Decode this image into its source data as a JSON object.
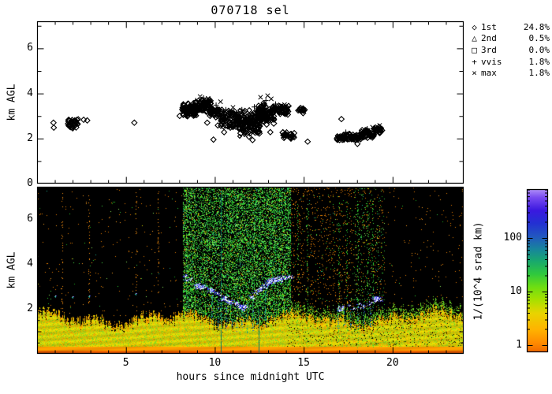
{
  "labels": {
    "title": "070718 sel",
    "y_axis": "km AGL",
    "x_axis": "hours since midnight UTC",
    "colorbar": "1/(10^4 srad km)"
  },
  "legend": {
    "items": [
      {
        "symbol": "◇",
        "name": "1st",
        "pct": "24.8%"
      },
      {
        "symbol": "△",
        "name": "2nd",
        "pct": "0.5%"
      },
      {
        "symbol": "□",
        "name": "3rd",
        "pct": "0.0%"
      },
      {
        "symbol": "+",
        "name": "vvis",
        "pct": "1.8%"
      },
      {
        "symbol": "×",
        "name": "max",
        "pct": "1.8%"
      }
    ]
  },
  "axes": {
    "x": {
      "min": 0,
      "max": 24,
      "major": [
        5,
        10,
        15,
        20
      ],
      "minor_step": 1
    },
    "y_top": {
      "min": 0,
      "max": 7.2,
      "labeled": [
        0,
        2,
        4,
        6
      ]
    },
    "y_bottom": {
      "min": 0,
      "max": 7.45,
      "labeled": [
        2,
        4,
        6
      ]
    },
    "colorbar": {
      "ticks": [
        1,
        10,
        100
      ],
      "scale": "log",
      "units": "1/(10^4 srad km)"
    }
  },
  "chart_data": [
    {
      "type": "scatter",
      "title": "070718 sel",
      "xlabel": "hours since midnight UTC",
      "ylabel": "km AGL",
      "xlim": [
        0,
        24
      ],
      "ylim": [
        0,
        7.2
      ],
      "legend_position": "right-outside",
      "series_note": "cloud-base heights, km AGL vs hour",
      "diamond_singles": [
        [
          0.9,
          2.72
        ],
        [
          0.92,
          2.5
        ],
        [
          2.6,
          2.85
        ],
        [
          2.8,
          2.82
        ],
        [
          5.45,
          2.72
        ],
        [
          8.0,
          3.02
        ],
        [
          9.55,
          2.72
        ],
        [
          9.9,
          1.97
        ],
        [
          10.15,
          2.6
        ],
        [
          10.5,
          2.3
        ],
        [
          10.85,
          2.5
        ],
        [
          11.9,
          2.1
        ],
        [
          12.1,
          1.95
        ],
        [
          13.1,
          2.3
        ],
        [
          14.25,
          2.02
        ],
        [
          15.2,
          1.88
        ],
        [
          17.1,
          2.88
        ],
        [
          18.0,
          1.78
        ]
      ],
      "diamond_clusters": [
        {
          "h0": 1.7,
          "h1": 2.3,
          "k0": 2.42,
          "k1": 2.92,
          "n": 40
        },
        {
          "h0": 8.15,
          "h1": 9.0,
          "k0": 2.95,
          "k1": 3.6,
          "n": 90
        },
        {
          "h0": 8.9,
          "h1": 9.8,
          "k0": 3.1,
          "k1": 3.85,
          "n": 80
        },
        {
          "h0": 9.7,
          "h1": 10.4,
          "k0": 2.9,
          "k1": 3.45,
          "n": 45
        },
        {
          "h0": 10.3,
          "h1": 11.35,
          "k0": 2.45,
          "k1": 3.35,
          "n": 80
        },
        {
          "h0": 11.25,
          "h1": 12.5,
          "k0": 2.1,
          "k1": 3.3,
          "n": 150
        },
        {
          "h0": 12.4,
          "h1": 13.35,
          "k0": 2.55,
          "k1": 3.7,
          "n": 130
        },
        {
          "h0": 13.45,
          "h1": 14.15,
          "k0": 3.05,
          "k1": 3.55,
          "n": 45
        },
        {
          "h0": 13.8,
          "h1": 14.45,
          "k0": 1.98,
          "k1": 2.32,
          "n": 30
        },
        {
          "h0": 14.65,
          "h1": 15.1,
          "k0": 3.12,
          "k1": 3.42,
          "n": 14
        },
        {
          "h0": 16.8,
          "h1": 17.45,
          "k0": 1.92,
          "k1": 2.22,
          "n": 35
        },
        {
          "h0": 17.4,
          "h1": 18.25,
          "k0": 1.88,
          "k1": 2.28,
          "n": 55
        },
        {
          "h0": 18.2,
          "h1": 18.95,
          "k0": 2.02,
          "k1": 2.42,
          "n": 55
        },
        {
          "h0": 18.9,
          "h1": 19.4,
          "k0": 2.22,
          "k1": 2.58,
          "n": 30
        }
      ],
      "plus_points": [
        [
          8.9,
          3.7
        ],
        [
          9.35,
          3.82
        ],
        [
          10.05,
          3.5
        ],
        [
          10.6,
          3.3
        ],
        [
          11.5,
          3.3
        ],
        [
          12.2,
          3.42
        ],
        [
          12.85,
          3.7
        ],
        [
          13.4,
          3.55
        ],
        [
          17.35,
          2.3
        ],
        [
          18.55,
          2.45
        ]
      ],
      "cross_points": [
        [
          9.15,
          3.88
        ],
        [
          9.6,
          3.8
        ],
        [
          10.3,
          3.65
        ],
        [
          11.0,
          3.4
        ],
        [
          12.55,
          3.85
        ],
        [
          12.95,
          3.92
        ],
        [
          13.15,
          3.78
        ],
        [
          13.9,
          3.52
        ],
        [
          14.1,
          3.38
        ],
        [
          18.85,
          2.52
        ],
        [
          19.25,
          2.6
        ]
      ]
    },
    {
      "type": "heatmap",
      "xlabel": "hours since midnight UTC",
      "ylabel": "km AGL",
      "xlim": [
        0,
        24
      ],
      "ylim": [
        0,
        7.45
      ],
      "value_scale": "log",
      "value_units": "1/(10^4 srad km)",
      "value_ticks": [
        1,
        10,
        100
      ],
      "seed": 20070718,
      "regimes": [
        {
          "h0": 0,
          "h1": 8.17,
          "orange": 0.006,
          "green": 0.002
        },
        {
          "h0": 8.17,
          "h1": 14.25,
          "orange": 0.012,
          "green": 0.4
        },
        {
          "h0": 14.25,
          "h1": 17.8,
          "orange": 0.052,
          "green": 0.012
        },
        {
          "h0": 17.8,
          "h1": 19.55,
          "orange": 0.028,
          "green": 0.055
        },
        {
          "h0": 19.55,
          "h1": 24,
          "orange": 0.011,
          "green": 0.001
        }
      ],
      "orange_dot_columns": [
        1.4,
        2.95,
        5.6,
        6.85
      ],
      "green_dot_columns": [
        14.7,
        15.2,
        17.0,
        17.45,
        18.05,
        18.6,
        18.9
      ],
      "teal_lines": [
        {
          "h": 10.35,
          "k0": 0.05,
          "k1": 7.3
        },
        {
          "h": 12.45,
          "k0": 0.05,
          "k1": 2.0
        }
      ],
      "virga_columns": [
        {
          "h": 9.8,
          "k0": 1.3,
          "k1": 2.6
        },
        {
          "h": 10.15,
          "k0": 1.1,
          "k1": 2.5
        },
        {
          "h": 10.6,
          "k0": 1.0,
          "k1": 2.3
        },
        {
          "h": 10.9,
          "k0": 1.2,
          "k1": 2.3
        },
        {
          "h": 11.2,
          "k0": 1.0,
          "k1": 2.2
        },
        {
          "h": 11.5,
          "k0": 1.1,
          "k1": 2.1
        },
        {
          "h": 11.8,
          "k0": 0.9,
          "k1": 2.0
        },
        {
          "h": 12.1,
          "k0": 1.0,
          "k1": 2.3
        },
        {
          "h": 12.8,
          "k0": 1.2,
          "k1": 2.8
        },
        {
          "h": 16.9,
          "k0": 1.1,
          "k1": 1.95
        },
        {
          "h": 17.25,
          "k0": 1.2,
          "k1": 2.0
        },
        {
          "h": 17.6,
          "k0": 1.1,
          "k1": 2.0
        },
        {
          "h": 18.0,
          "k0": 1.2,
          "k1": 2.1
        },
        {
          "h": 18.35,
          "k0": 1.3,
          "k1": 2.2
        },
        {
          "h": 18.7,
          "k0": 1.2,
          "k1": 2.3
        }
      ],
      "cloud_tracks": [
        {
          "poly": [
            [
              8.35,
              3.45
            ],
            [
              9.0,
              3.05
            ],
            [
              9.6,
              2.85
            ],
            [
              10.2,
              2.6
            ],
            [
              10.8,
              2.35
            ],
            [
              11.35,
              2.15
            ],
            [
              11.75,
              2.05
            ]
          ],
          "n": 65
        },
        {
          "poly": [
            [
              12.0,
              2.5
            ],
            [
              12.35,
              2.8
            ],
            [
              12.7,
              3.0
            ],
            [
              13.05,
              3.2
            ],
            [
              13.4,
              3.35
            ],
            [
              13.75,
              3.3
            ],
            [
              14.05,
              3.45
            ],
            [
              14.35,
              3.4
            ]
          ],
          "n": 52
        },
        {
          "poly": [
            [
              16.9,
              2.0
            ],
            [
              17.4,
              2.1
            ],
            [
              17.9,
              2.1
            ],
            [
              18.4,
              2.25
            ],
            [
              18.9,
              2.4
            ],
            [
              19.3,
              2.5
            ]
          ],
          "n": 26
        }
      ],
      "night_clouds": [
        [
          1.0,
          2.6
        ],
        [
          2.0,
          2.55
        ],
        [
          2.95,
          2.6
        ],
        [
          5.55,
          2.7
        ]
      ],
      "boundary_layer": {
        "top_km_base": 1.6,
        "orange_band_km": 0.34,
        "rise_after_h": 21
      }
    }
  ]
}
